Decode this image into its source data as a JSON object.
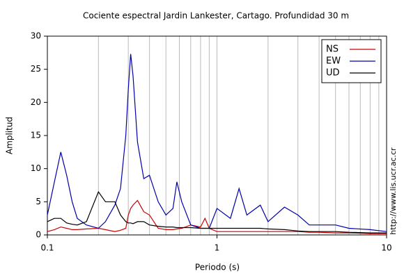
{
  "chart_data": {
    "type": "line",
    "title": "Cociente espectral Jardin Lankester, Cartago. Profundidad 30 m",
    "x_label": "Periodo (s)",
    "y_label": "Amplitud",
    "side_text": "http://www.lis.ucr.ac.cr",
    "x_scale": "log",
    "grid": true,
    "legend": "top-right",
    "xlim": [
      0.1,
      10
    ],
    "xticks": [
      0.1,
      1,
      10
    ],
    "ylim": [
      0,
      30
    ],
    "yticks": [
      0,
      5,
      10,
      15,
      20,
      25,
      30
    ],
    "x": [
      0.1,
      0.11,
      0.12,
      0.13,
      0.14,
      0.15,
      0.17,
      0.2,
      0.22,
      0.25,
      0.27,
      0.29,
      0.3,
      0.31,
      0.32,
      0.34,
      0.37,
      0.4,
      0.45,
      0.5,
      0.55,
      0.58,
      0.62,
      0.7,
      0.8,
      0.85,
      0.9,
      1,
      1.2,
      1.35,
      1.5,
      1.8,
      2,
      2.5,
      3,
      3.5,
      4,
      5,
      6,
      8,
      10
    ],
    "series": [
      {
        "name": "NS",
        "color": "#cc0000",
        "values": [
          0.5,
          0.8,
          1.2,
          1,
          0.8,
          0.8,
          0.9,
          1,
          0.8,
          0.5,
          0.7,
          1,
          3,
          4,
          4.5,
          5.2,
          3.5,
          3,
          1,
          0.8,
          0.8,
          0.9,
          1,
          1.5,
          1.2,
          2.5,
          1,
          0.5,
          0.5,
          0.5,
          0.5,
          0.5,
          0.5,
          0.5,
          0.5,
          0.4,
          0.4,
          0.3,
          0.3,
          0.2,
          0.2
        ]
      },
      {
        "name": "EW",
        "color": "#0000aa",
        "values": [
          3,
          8,
          12.5,
          9,
          5,
          2.5,
          1.5,
          1,
          2,
          4.5,
          7,
          15,
          22,
          27.3,
          24,
          14,
          8.5,
          9,
          5,
          3,
          4,
          8,
          5,
          1.5,
          1,
          1,
          1,
          4,
          2.5,
          7,
          3,
          4.5,
          2,
          4.2,
          3,
          1.5,
          1.5,
          1.5,
          1,
          0.8,
          0.5
        ]
      },
      {
        "name": "UD",
        "color": "#000000",
        "values": [
          2,
          2.5,
          2.5,
          1.8,
          1.6,
          1.5,
          2,
          6.5,
          5,
          5,
          3,
          2,
          1.8,
          1.8,
          1.7,
          2,
          2,
          1.5,
          1.3,
          1.2,
          1.2,
          1.1,
          1.1,
          1.1,
          1,
          1,
          1,
          1,
          1,
          1,
          1,
          1,
          0.9,
          0.8,
          0.6,
          0.5,
          0.5,
          0.5,
          0.4,
          0.3,
          0.3
        ]
      }
    ]
  }
}
